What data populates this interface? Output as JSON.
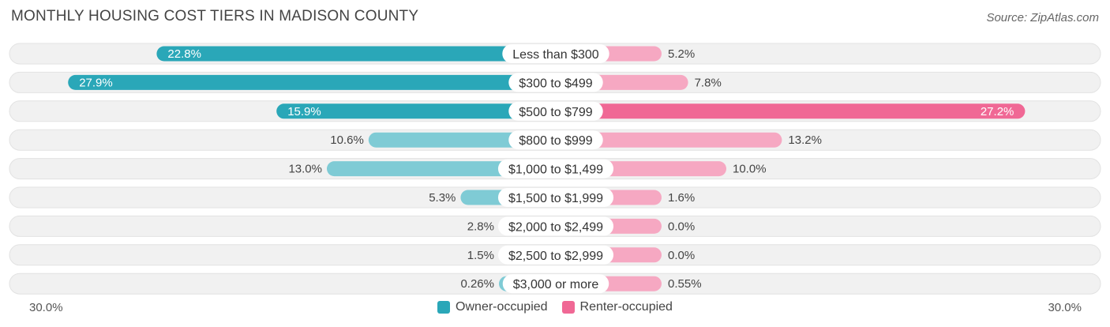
{
  "title": "MONTHLY HOUSING COST TIERS IN MADISON COUNTY",
  "source": "Source: ZipAtlas.com",
  "colors": {
    "owner": "#2aa7b8",
    "owner_light": "#7fcbd5",
    "renter": "#f06895",
    "renter_light": "#f6a8c2",
    "track": "#f1f1f1"
  },
  "chart_data": {
    "type": "bar",
    "orientation": "diverging-horizontal",
    "title": "MONTHLY HOUSING COST TIERS IN MADISON COUNTY",
    "categories": [
      "Less than $300",
      "$300 to $499",
      "$500 to $799",
      "$800 to $999",
      "$1,000 to $1,499",
      "$1,500 to $1,999",
      "$2,000 to $2,499",
      "$2,500 to $2,999",
      "$3,000 or more"
    ],
    "series": [
      {
        "name": "Owner-occupied",
        "values": [
          22.8,
          27.9,
          15.9,
          10.6,
          13.0,
          5.3,
          2.8,
          1.5,
          0.26
        ],
        "labels": [
          "22.8%",
          "27.9%",
          "15.9%",
          "10.6%",
          "13.0%",
          "5.3%",
          "2.8%",
          "1.5%",
          "0.26%"
        ]
      },
      {
        "name": "Renter-occupied",
        "values": [
          5.2,
          7.8,
          27.2,
          13.2,
          10.0,
          1.6,
          0.0,
          0.0,
          0.55
        ],
        "labels": [
          "5.2%",
          "7.8%",
          "27.2%",
          "13.2%",
          "10.0%",
          "1.6%",
          "0.0%",
          "0.0%",
          "0.55%"
        ]
      }
    ],
    "xlim": [
      -30,
      30
    ],
    "axis_labels": {
      "left": "30.0%",
      "right": "30.0%"
    },
    "legend": [
      "Owner-occupied",
      "Renter-occupied"
    ]
  }
}
